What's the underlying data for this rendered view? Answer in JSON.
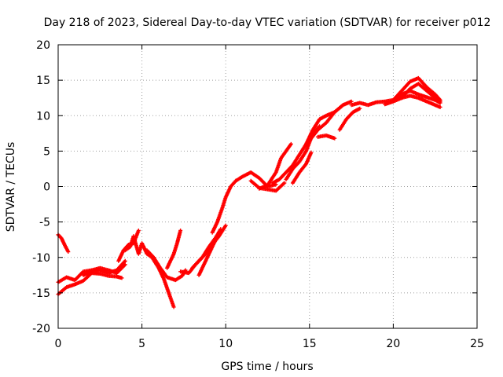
{
  "chart_data": {
    "type": "scatter",
    "title": "Day 218 of 2023, Sidereal Day-to-day VTEC variation (SDTVAR) for receiver p012",
    "xlabel": "GPS time / hours",
    "ylabel": "SDTVAR / TECUs",
    "xlim": [
      0,
      25
    ],
    "ylim": [
      -20,
      20
    ],
    "x_ticks": [
      "0",
      "5",
      "10",
      "15",
      "20",
      "25"
    ],
    "y_ticks": [
      "-20",
      "-15",
      "-10",
      "-5",
      "0",
      "5",
      "10",
      "15",
      "20"
    ],
    "grid": true,
    "marker": "+",
    "color": "#ff0000",
    "series": [
      {
        "x": [
          0,
          0.2,
          0.4,
          0.6
        ],
        "y": [
          -6.8,
          -7.3,
          -8.3,
          -9.2
        ]
      },
      {
        "x": [
          0,
          0.5,
          1,
          1.5,
          2,
          2.5,
          3,
          3.5,
          3.8
        ],
        "y": [
          -15.2,
          -14.2,
          -13.8,
          -13.3,
          -12.2,
          -12.3,
          -12.6,
          -12.7,
          -12.9
        ]
      },
      {
        "x": [
          0,
          0.5,
          1,
          1.5,
          2,
          2.5,
          3,
          3.5,
          4
        ],
        "y": [
          -13.5,
          -12.8,
          -13.2,
          -12.0,
          -11.8,
          -11.5,
          -11.8,
          -12.2,
          -11.0
        ]
      },
      {
        "x": [
          1.5,
          2,
          2.5,
          3,
          3.5,
          4
        ],
        "y": [
          -12.5,
          -12.0,
          -11.8,
          -12.2,
          -11.8,
          -10.5
        ]
      },
      {
        "x": [
          3.6,
          3.9,
          4.2,
          4.5,
          4.8
        ],
        "y": [
          -10.5,
          -9.0,
          -8.2,
          -8.0,
          -6.2
        ]
      },
      {
        "x": [
          4.0,
          4.3,
          4.5,
          4.8,
          5.0,
          5.3,
          5.6,
          6.0,
          6.3,
          6.6,
          6.9
        ],
        "y": [
          -9.0,
          -8.5,
          -7.0,
          -9.5,
          -8.0,
          -9.5,
          -10.0,
          -11.5,
          -13.0,
          -15.0,
          -17.0
        ]
      },
      {
        "x": [
          5.3,
          5.7,
          6.1,
          6.5,
          7.0,
          7.4,
          7.6
        ],
        "y": [
          -9.0,
          -10.0,
          -11.5,
          -12.8,
          -13.2,
          -12.6,
          -11.8
        ]
      },
      {
        "x": [
          6.5,
          6.9,
          7.1,
          7.3
        ],
        "y": [
          -11.5,
          -9.5,
          -8.0,
          -6.2
        ]
      },
      {
        "x": [
          7.3,
          7.8,
          8.2,
          8.6,
          9.0,
          9.4,
          9.7
        ],
        "y": [
          -12.0,
          -12.2,
          -11.0,
          -10.0,
          -8.5,
          -7.2,
          -6.0
        ]
      },
      {
        "x": [
          8.0,
          8.4,
          8.8,
          9.2,
          9.6,
          10.0
        ],
        "y": [
          -11.5,
          -10.5,
          -9.5,
          -8.2,
          -7.0,
          -5.5
        ]
      },
      {
        "x": [
          8.4,
          8.8,
          9.2,
          9.6
        ],
        "y": [
          -12.5,
          -10.5,
          -8.5,
          -6.5
        ]
      },
      {
        "x": [
          9.2,
          9.5,
          9.8,
          10.0,
          10.3,
          10.6
        ],
        "y": [
          -6.5,
          -5.0,
          -3.0,
          -1.5,
          0.0,
          0.8
        ]
      },
      {
        "x": [
          10.6,
          11.0,
          11.5,
          12.0,
          12.5,
          13.0
        ],
        "y": [
          0.8,
          1.4,
          2.0,
          1.2,
          0.0,
          0.3
        ]
      },
      {
        "x": [
          11.5,
          12.0,
          12.5,
          13.0,
          13.5
        ],
        "y": [
          0.8,
          -0.2,
          -0.4,
          -0.6,
          0.5
        ]
      },
      {
        "x": [
          12.0,
          12.5,
          13.0,
          13.3,
          13.6,
          13.9
        ],
        "y": [
          -0.3,
          0.2,
          2.0,
          4.0,
          5.0,
          6.0
        ]
      },
      {
        "x": [
          12.8,
          13.2,
          13.6,
          14.0,
          14.4,
          14.8
        ],
        "y": [
          0.5,
          1.0,
          2.0,
          3.0,
          4.5,
          6.0
        ]
      },
      {
        "x": [
          13.6,
          14.0,
          14.4,
          14.8,
          15.2,
          15.6
        ],
        "y": [
          1.0,
          2.5,
          3.5,
          5.0,
          7.5,
          8.5
        ]
      },
      {
        "x": [
          14.0,
          14.4,
          14.8,
          15.1
        ],
        "y": [
          0.5,
          2.0,
          3.2,
          4.8
        ]
      },
      {
        "x": [
          14.8,
          15.2,
          15.6,
          16.0,
          16.5,
          17.0
        ],
        "y": [
          6.0,
          8.0,
          9.5,
          10.0,
          10.5,
          11.5
        ]
      },
      {
        "x": [
          15.0,
          15.5,
          16.0,
          16.5,
          17.0,
          17.5
        ],
        "y": [
          6.5,
          8.0,
          9.0,
          10.5,
          11.5,
          12.0
        ]
      },
      {
        "x": [
          15.5,
          16.0,
          16.5
        ],
        "y": [
          7.0,
          7.2,
          6.8
        ]
      },
      {
        "x": [
          16.8,
          17.2,
          17.6,
          18.0
        ],
        "y": [
          8.0,
          9.5,
          10.5,
          11.0
        ]
      },
      {
        "x": [
          17.5,
          18.0,
          18.5,
          19.0,
          19.5,
          20.0,
          20.5,
          21.0,
          21.5,
          22.0,
          22.5,
          22.8
        ],
        "y": [
          11.5,
          11.8,
          11.5,
          11.9,
          12.0,
          12.2,
          13.0,
          13.5,
          13.0,
          12.6,
          12.2,
          11.8
        ]
      },
      {
        "x": [
          19.5,
          20.0,
          20.5,
          21.0,
          21.5,
          22.0,
          22.5,
          22.8
        ],
        "y": [
          11.6,
          12.0,
          12.5,
          13.8,
          14.5,
          13.5,
          12.5,
          12.0
        ]
      },
      {
        "x": [
          20.0,
          20.5,
          21.0,
          21.5,
          22.0,
          22.5,
          22.8
        ],
        "y": [
          12.2,
          13.5,
          14.8,
          15.3,
          14.0,
          13.0,
          12.2
        ]
      },
      {
        "x": [
          20.5,
          21.0,
          21.5,
          22.0,
          22.5,
          22.8
        ],
        "y": [
          12.5,
          12.8,
          12.5,
          12.0,
          11.5,
          11.2
        ]
      }
    ]
  }
}
